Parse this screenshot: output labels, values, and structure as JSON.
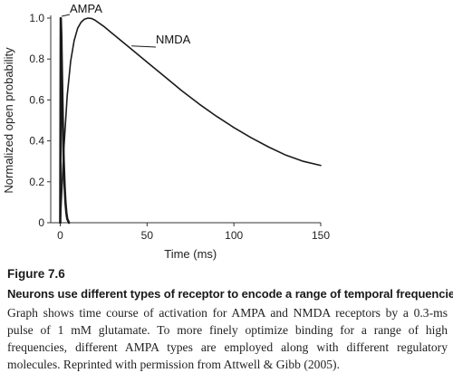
{
  "chart_data": {
    "type": "line",
    "xlabel": "Time (ms)",
    "ylabel": "Normalized open probability",
    "xlim": [
      -3,
      152
    ],
    "ylim": [
      0,
      1.0
    ],
    "xticks": [
      0,
      50,
      100,
      150
    ],
    "yticks": [
      0,
      0.2,
      0.4,
      0.6,
      0.8,
      1.0
    ],
    "xtick_labels": [
      "0",
      "50",
      "100",
      "150"
    ],
    "ytick_labels": [
      "0",
      "0.2",
      "0.4",
      "0.6",
      "0.8",
      "1.0"
    ],
    "grid": false,
    "series": [
      {
        "name": "AMPA",
        "color": "#1a1a1a",
        "x": [
          0,
          0.3,
          0.6,
          1,
          1.5,
          2,
          2.5,
          3,
          3.5,
          4,
          5
        ],
        "y": [
          0,
          1.0,
          0.92,
          0.72,
          0.48,
          0.3,
          0.18,
          0.1,
          0.05,
          0.02,
          0
        ]
      },
      {
        "name": "NMDA",
        "color": "#1a1a1a",
        "x": [
          0,
          2,
          4,
          6,
          8,
          10,
          12,
          14,
          16,
          18,
          20,
          25,
          30,
          40,
          50,
          60,
          70,
          80,
          90,
          100,
          110,
          120,
          130,
          140,
          150
        ],
        "y": [
          0,
          0.35,
          0.62,
          0.79,
          0.89,
          0.95,
          0.98,
          0.995,
          1.0,
          0.998,
          0.99,
          0.96,
          0.925,
          0.855,
          0.785,
          0.715,
          0.645,
          0.58,
          0.52,
          0.465,
          0.415,
          0.37,
          0.33,
          0.3,
          0.28
        ]
      }
    ]
  },
  "caption": {
    "figure_number": "Figure 7.6",
    "title": "Neurons use different types of receptor to encode a range of temporal frequencies.",
    "description": "Graph shows time course of activation for AMPA and NMDA receptors by a 0.3-ms pulse of 1 mM glutamate. To more finely optimize binding for a range of high frequencies, different AMPA types are employed along with different regulatory molecules. Reprinted with permission from Attwell & Gibb (2005)."
  }
}
